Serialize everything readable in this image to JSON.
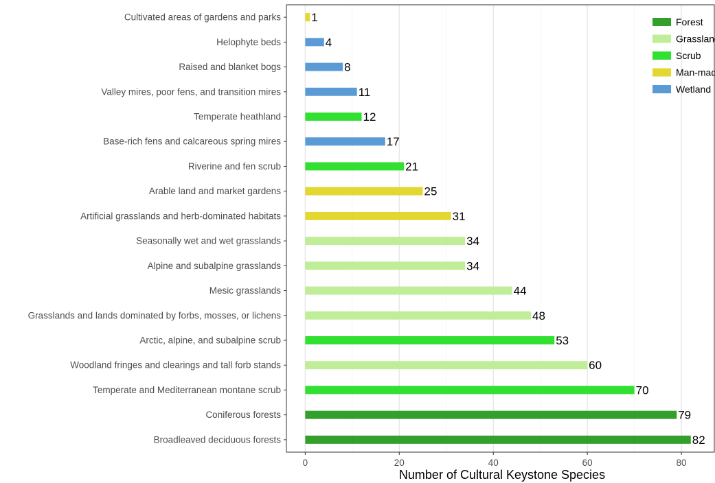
{
  "chart_data": {
    "type": "bar",
    "orientation": "horizontal",
    "xlabel": "Number of Cultural Keystone Species",
    "ylabel": "",
    "xlim": [
      -4,
      87
    ],
    "xticks": [
      0,
      20,
      40,
      60,
      80
    ],
    "grid": true,
    "legend_position": "top-right",
    "legend": [
      {
        "name": "Forest",
        "color": "#33a02c"
      },
      {
        "name": "Grassland",
        "color": "#c0ed98"
      },
      {
        "name": "Scrub",
        "color": "#31e030"
      },
      {
        "name": "Man-made",
        "color": "#e3d731"
      },
      {
        "name": "Wetland",
        "color": "#5b9bd5"
      }
    ],
    "bars": [
      {
        "category": "Cultivated areas of gardens and parks",
        "value": 1,
        "group": "Man-made"
      },
      {
        "category": "Helophyte beds",
        "value": 4,
        "group": "Wetland"
      },
      {
        "category": "Raised and blanket bogs",
        "value": 8,
        "group": "Wetland"
      },
      {
        "category": "Valley mires, poor fens, and transition mires",
        "value": 11,
        "group": "Wetland"
      },
      {
        "category": "Temperate heathland",
        "value": 12,
        "group": "Scrub"
      },
      {
        "category": "Base-rich fens and calcareous spring mires",
        "value": 17,
        "group": "Wetland"
      },
      {
        "category": "Riverine and fen scrub",
        "value": 21,
        "group": "Scrub"
      },
      {
        "category": "Arable land and market gardens",
        "value": 25,
        "group": "Man-made"
      },
      {
        "category": "Artificial grasslands and herb-dominated habitats",
        "value": 31,
        "group": "Man-made"
      },
      {
        "category": "Seasonally wet and wet grasslands",
        "value": 34,
        "group": "Grassland"
      },
      {
        "category": "Alpine and subalpine grasslands",
        "value": 34,
        "group": "Grassland"
      },
      {
        "category": "Mesic grasslands",
        "value": 44,
        "group": "Grassland"
      },
      {
        "category": "Grasslands and lands dominated by forbs, mosses, or lichens",
        "value": 48,
        "group": "Grassland"
      },
      {
        "category": "Arctic, alpine, and subalpine scrub",
        "value": 53,
        "group": "Scrub"
      },
      {
        "category": "Woodland fringes and clearings and tall forb stands",
        "value": 60,
        "group": "Grassland"
      },
      {
        "category": "Temperate and Mediterranean montane scrub",
        "value": 70,
        "group": "Scrub"
      },
      {
        "category": "Coniferous forests",
        "value": 79,
        "group": "Forest"
      },
      {
        "category": "Broadleaved deciduous forests",
        "value": 82,
        "group": "Forest"
      }
    ]
  }
}
